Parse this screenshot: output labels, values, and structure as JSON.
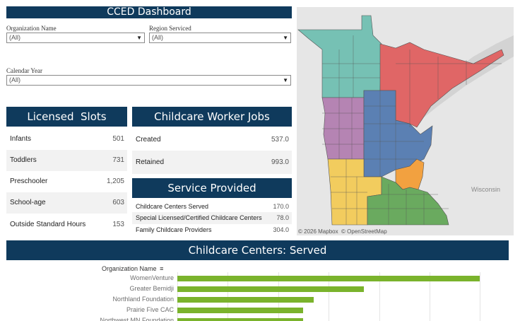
{
  "dashboard": {
    "title": "CCED Dashboard"
  },
  "filters": {
    "organization": {
      "label": "Organization Name",
      "value": "(All)"
    },
    "region": {
      "label": "Region Serviced",
      "value": "(All)"
    },
    "year": {
      "label": "Calendar Year",
      "value": "(All)"
    }
  },
  "licensed_slots": {
    "title": "Licensed  Slots",
    "rows": [
      {
        "label": "Infants",
        "value": "501"
      },
      {
        "label": "Toddlers",
        "value": "731"
      },
      {
        "label": "Preschooler",
        "value": "1,205"
      },
      {
        "label": "School-age",
        "value": "603"
      },
      {
        "label": "Outside Standard Hours",
        "value": "153"
      }
    ]
  },
  "worker_jobs": {
    "title": "Childcare Worker Jobs",
    "rows": [
      {
        "label": "Created",
        "value": "537.0"
      },
      {
        "label": "Retained",
        "value": "993.0"
      }
    ]
  },
  "service_provided": {
    "title": "Service Provided",
    "rows": [
      {
        "label": "Childcare Centers Served",
        "value": "170.0"
      },
      {
        "label": "Special Licensed/Certified Childcare Centers",
        "value": "78.0"
      },
      {
        "label": "Family Childcare Providers",
        "value": "304.0"
      }
    ]
  },
  "map": {
    "state_label": "Wisconsin",
    "attribution": "© 2026 Mapbox  © OpenStreetMap",
    "colors": {
      "teal": "#76c1b4",
      "red": "#e06666",
      "purple": "#b584b3",
      "blue": "#5b80b3",
      "yellow": "#f2cc5e",
      "orange": "#f2a140",
      "green": "#6aaa5f",
      "water": "#d3d3d3",
      "land": "#e6e6e6"
    }
  },
  "chart_data": {
    "type": "bar",
    "title": "Childcare Centers: Served",
    "ylabel": "Organization Name",
    "categories": [
      "WomenVenture",
      "Greater Bemidji",
      "Northland Foundation",
      "Prairie Five CAC",
      "Northwest MN Foundation"
    ],
    "values": [
      60,
      37,
      27,
      25,
      25
    ],
    "xlim": [
      0,
      65
    ],
    "bar_color": "#7ab32c"
  }
}
